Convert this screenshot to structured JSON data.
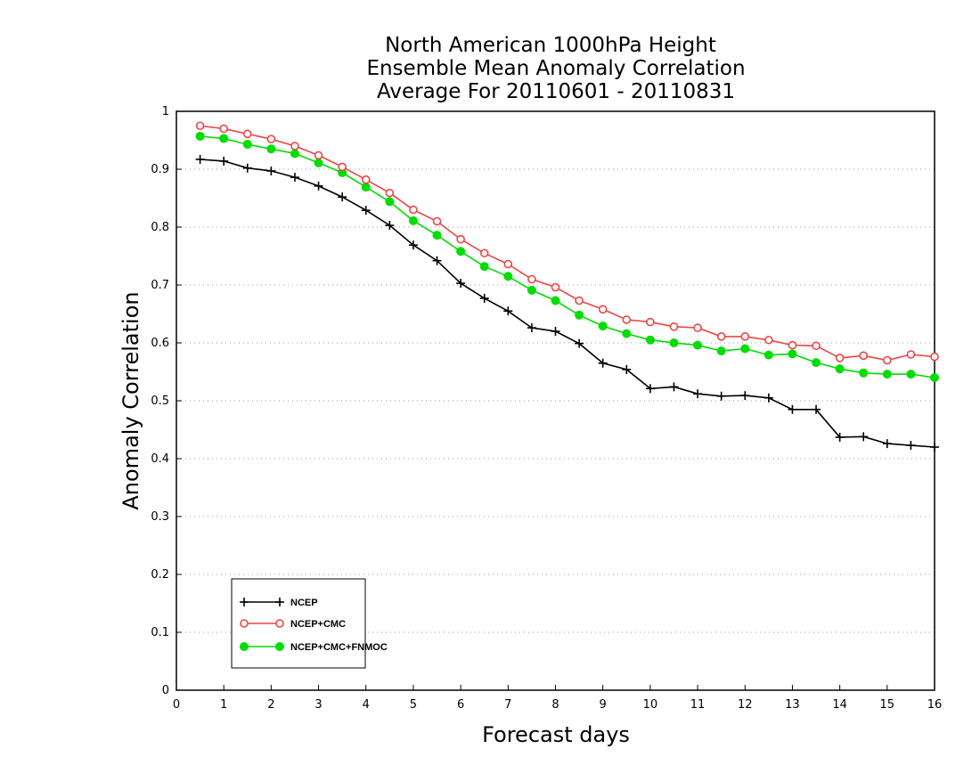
{
  "chart_data": {
    "type": "line",
    "title_lines": [
      "North American 1000hPa Height",
      "Ensemble Mean Anomaly Correlation",
      "Average For 20110601 - 20110831"
    ],
    "xlabel": "Forecast days",
    "ylabel": "Anomaly Correlation",
    "xlim": [
      0,
      16
    ],
    "ylim": [
      0,
      1
    ],
    "x_ticks": [
      "0",
      "1",
      "2",
      "3",
      "4",
      "5",
      "6",
      "7",
      "8",
      "9",
      "10",
      "11",
      "12",
      "13",
      "14",
      "15",
      "16"
    ],
    "y_ticks": [
      "0",
      "0.1",
      "0.2",
      "0.3",
      "0.4",
      "0.5",
      "0.6",
      "0.7",
      "0.8",
      "0.9",
      "1"
    ],
    "grid": "horizontal dotted",
    "legend_position": "bottom-left",
    "x": [
      0.5,
      1,
      1.5,
      2,
      2.5,
      3,
      3.5,
      4,
      4.5,
      5,
      5.5,
      6,
      6.5,
      7,
      7.5,
      8,
      8.5,
      9,
      9.5,
      10,
      10.5,
      11,
      11.5,
      12,
      12.5,
      13,
      13.5,
      14,
      14.5,
      15,
      15.5,
      16
    ],
    "series": [
      {
        "name": "NCEP",
        "color": "#000000",
        "marker": "plus",
        "values": [
          0.917,
          0.914,
          0.902,
          0.897,
          0.886,
          0.871,
          0.852,
          0.829,
          0.803,
          0.769,
          0.742,
          0.703,
          0.677,
          0.655,
          0.626,
          0.62,
          0.599,
          0.565,
          0.554,
          0.521,
          0.524,
          0.512,
          0.508,
          0.509,
          0.505,
          0.485,
          0.485,
          0.437,
          0.438,
          0.426,
          0.423,
          0.42
        ]
      },
      {
        "name": "NCEP+CMC",
        "color": "#ee4444",
        "marker": "open-circle",
        "values": [
          0.975,
          0.97,
          0.961,
          0.952,
          0.94,
          0.924,
          0.904,
          0.882,
          0.859,
          0.83,
          0.81,
          0.779,
          0.755,
          0.736,
          0.71,
          0.696,
          0.673,
          0.658,
          0.64,
          0.636,
          0.628,
          0.626,
          0.611,
          0.611,
          0.605,
          0.596,
          0.595,
          0.574,
          0.578,
          0.57,
          0.58,
          0.576
        ]
      },
      {
        "name": "NCEP+CMC+FNMOC",
        "color": "#00dd00",
        "marker": "filled-circle",
        "values": [
          0.957,
          0.953,
          0.943,
          0.935,
          0.927,
          0.911,
          0.894,
          0.869,
          0.844,
          0.811,
          0.786,
          0.758,
          0.732,
          0.715,
          0.691,
          0.673,
          0.648,
          0.629,
          0.616,
          0.605,
          0.6,
          0.596,
          0.586,
          0.59,
          0.579,
          0.581,
          0.566,
          0.555,
          0.548,
          0.546,
          0.546,
          0.54
        ]
      }
    ]
  }
}
